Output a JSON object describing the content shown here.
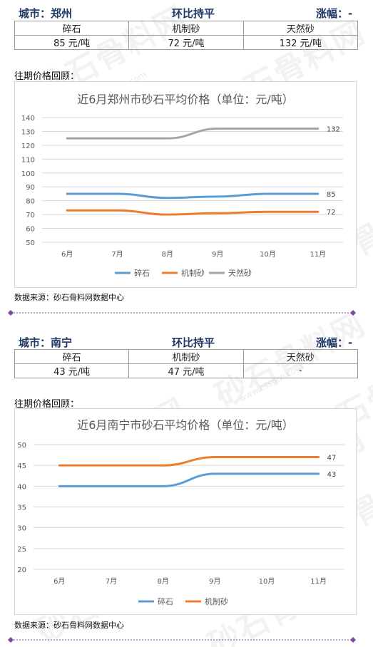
{
  "sections": [
    {
      "city_label": "城市：郑州",
      "trend": "环比持平",
      "change_label": "涨幅：-",
      "products": [
        "碎石",
        "机制砂",
        "天然砂"
      ],
      "prices": [
        "85 元/吨",
        "72 元/吨",
        "132 元/吨"
      ],
      "review_label": "往期价格回顾：",
      "source": "数据来源：砂石骨料网数据中心"
    },
    {
      "city_label": "城市：南宁",
      "trend": "环比持平",
      "change_label": "涨幅：-",
      "products": [
        "碎石",
        "机制砂",
        "天然砂"
      ],
      "prices": [
        "43 元/吨",
        "47 元/吨",
        "-"
      ],
      "review_label": "往期价格回顾：",
      "source": "数据来源：砂石骨料网数据中心"
    }
  ],
  "watermark": {
    "text": "砂石骨料网",
    "url": "www.cssglw.com"
  },
  "chart_data": [
    {
      "type": "line",
      "title": "近6月郑州市砂石平均价格（单位：元/吨）",
      "categories": [
        "6月",
        "7月",
        "8月",
        "9月",
        "10月",
        "11月"
      ],
      "ylim": [
        50,
        140
      ],
      "yticks": [
        50,
        60,
        70,
        80,
        90,
        100,
        110,
        120,
        130,
        140
      ],
      "grid": true,
      "legend": "bottom",
      "series": [
        {
          "name": "碎石",
          "color": "#5b9bd5",
          "values": [
            85,
            85,
            82,
            83,
            85,
            85
          ],
          "end_label": "85"
        },
        {
          "name": "机制砂",
          "color": "#ed7d31",
          "values": [
            73,
            73,
            70,
            71,
            72,
            72
          ],
          "end_label": "72"
        },
        {
          "name": "天然砂",
          "color": "#a5a5a5",
          "values": [
            125,
            125,
            125,
            132,
            132,
            132
          ],
          "end_label": "132"
        }
      ]
    },
    {
      "type": "line",
      "title": "近6月南宁市砂石平均价格（单位：元/吨）",
      "categories": [
        "6月",
        "7月",
        "8月",
        "9月",
        "10月",
        "11月"
      ],
      "ylim": [
        20,
        50
      ],
      "yticks": [
        20,
        25,
        30,
        35,
        40,
        45,
        50
      ],
      "grid": true,
      "legend": "bottom",
      "series": [
        {
          "name": "碎石",
          "color": "#5b9bd5",
          "values": [
            40,
            40,
            40,
            43,
            43,
            43
          ],
          "end_label": "43"
        },
        {
          "name": "机制砂",
          "color": "#ed7d31",
          "values": [
            45,
            45,
            45,
            47,
            47,
            47
          ],
          "end_label": "47"
        }
      ]
    }
  ]
}
